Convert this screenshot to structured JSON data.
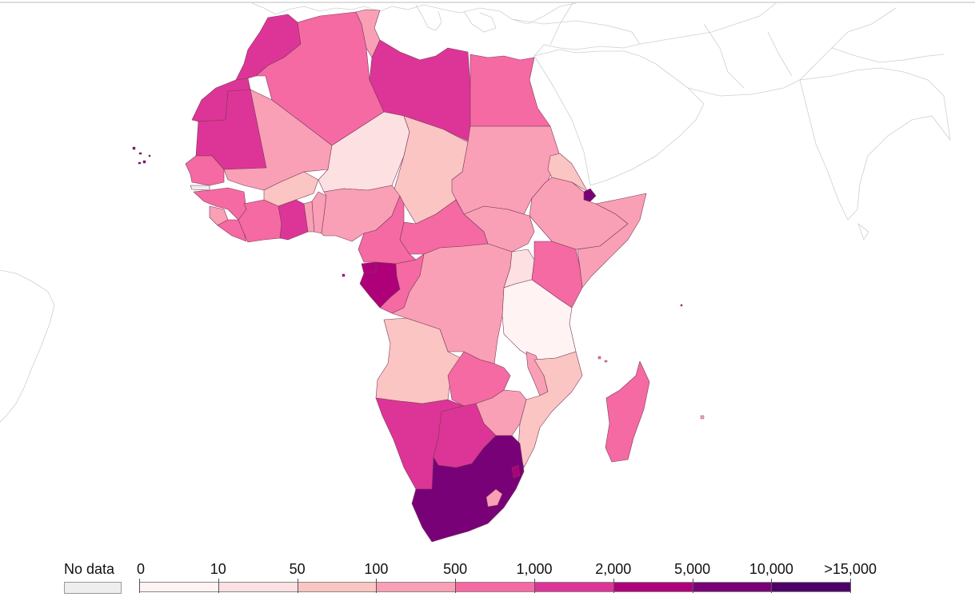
{
  "legend": {
    "no_data_label": "No data",
    "no_data_color": "#eeeeee",
    "tick_labels": [
      "0",
      "10",
      "50",
      "100",
      "500",
      "1,000",
      "2,000",
      "5,000",
      "10,000",
      ">15,000"
    ],
    "bins": [
      {
        "color": "#fff3f3"
      },
      {
        "color": "#fde0e2"
      },
      {
        "color": "#fac5c2"
      },
      {
        "color": "#f9a0b6"
      },
      {
        "color": "#f56aa2"
      },
      {
        "color": "#dd3597"
      },
      {
        "color": "#ae0179"
      },
      {
        "color": "#790178"
      },
      {
        "color": "#4e0069"
      }
    ]
  },
  "countries": [
    {
      "name": "Morocco",
      "bin": 5
    },
    {
      "name": "Western Sahara",
      "bin": 5
    },
    {
      "name": "Algeria",
      "bin": 4
    },
    {
      "name": "Tunisia",
      "bin": 3
    },
    {
      "name": "Libya",
      "bin": 5
    },
    {
      "name": "Egypt",
      "bin": 4
    },
    {
      "name": "Mauritania",
      "bin": 5
    },
    {
      "name": "Mali",
      "bin": 3
    },
    {
      "name": "Niger",
      "bin": 1
    },
    {
      "name": "Chad",
      "bin": 2
    },
    {
      "name": "Sudan",
      "bin": 3
    },
    {
      "name": "Eritrea",
      "bin": 2
    },
    {
      "name": "Djibouti",
      "bin": 7
    },
    {
      "name": "Ethiopia",
      "bin": 3
    },
    {
      "name": "Somalia",
      "bin": 3
    },
    {
      "name": "Senegal",
      "bin": 4
    },
    {
      "name": "Guinea",
      "bin": 4
    },
    {
      "name": "Sierra Leone",
      "bin": 3
    },
    {
      "name": "Liberia",
      "bin": 4
    },
    {
      "name": "Cote d'Ivoire",
      "bin": 4
    },
    {
      "name": "Burkina Faso",
      "bin": 2
    },
    {
      "name": "Ghana",
      "bin": 5
    },
    {
      "name": "Togo",
      "bin": 3
    },
    {
      "name": "Benin",
      "bin": 3
    },
    {
      "name": "Nigeria",
      "bin": 3
    },
    {
      "name": "Cameroon",
      "bin": 4
    },
    {
      "name": "Central African Republic",
      "bin": 4
    },
    {
      "name": "South Sudan",
      "bin": 3
    },
    {
      "name": "Equatorial Guinea",
      "bin": 6
    },
    {
      "name": "Gabon",
      "bin": 6
    },
    {
      "name": "Republic of the Congo",
      "bin": 4
    },
    {
      "name": "DR Congo",
      "bin": 3
    },
    {
      "name": "Uganda",
      "bin": 1
    },
    {
      "name": "Kenya",
      "bin": 4
    },
    {
      "name": "Tanzania",
      "bin": 0
    },
    {
      "name": "Angola",
      "bin": 2
    },
    {
      "name": "Zambia",
      "bin": 4
    },
    {
      "name": "Malawi",
      "bin": 3
    },
    {
      "name": "Mozambique",
      "bin": 2
    },
    {
      "name": "Zimbabwe",
      "bin": 3
    },
    {
      "name": "Namibia",
      "bin": 5
    },
    {
      "name": "Botswana",
      "bin": 5
    },
    {
      "name": "South Africa",
      "bin": 7
    },
    {
      "name": "Lesotho",
      "bin": 3
    },
    {
      "name": "Eswatini",
      "bin": 6
    },
    {
      "name": "Madagascar",
      "bin": 4
    },
    {
      "name": "Cape Verde",
      "bin": 7
    },
    {
      "name": "Sao Tome and Principe",
      "bin": 6
    },
    {
      "name": "Comoros",
      "bin": 4
    },
    {
      "name": "Mauritius",
      "bin": 3
    },
    {
      "name": "Seychelles",
      "bin": 6
    }
  ]
}
